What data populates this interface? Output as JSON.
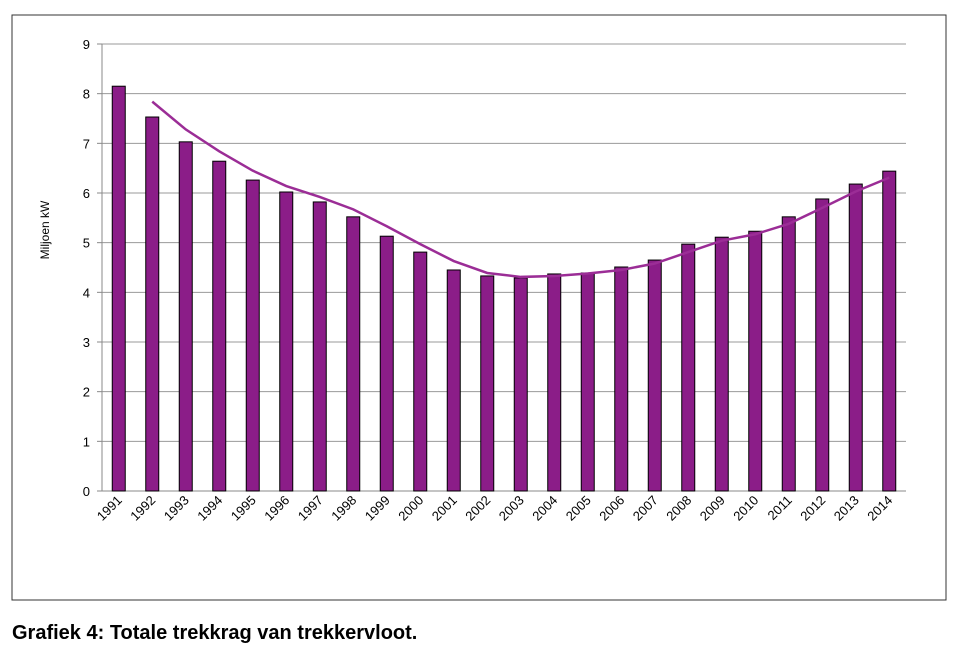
{
  "chart_data": {
    "type": "bar",
    "y_label": "Miljoen kW",
    "caption": "Grafiek 4: Totale trekkrag van trekkervloot.",
    "categories": [
      "1991",
      "1992",
      "1993",
      "1994",
      "1995",
      "1996",
      "1997",
      "1998",
      "1999",
      "2000",
      "2001",
      "2002",
      "2003",
      "2004",
      "2005",
      "2006",
      "2007",
      "2008",
      "2009",
      "2010",
      "2011",
      "2012",
      "2013",
      "2014"
    ],
    "series": [
      {
        "type": "bar",
        "color": "#8b1d88",
        "values": [
          8.15,
          7.53,
          7.03,
          6.64,
          6.26,
          6.02,
          5.82,
          5.52,
          5.13,
          4.81,
          4.45,
          4.33,
          4.29,
          4.37,
          4.39,
          4.51,
          4.65,
          4.97,
          5.11,
          5.23,
          5.52,
          5.88,
          6.18,
          6.44
        ]
      },
      {
        "type": "line",
        "color": "#9b2d96",
        "values": [
          null,
          7.84,
          7.28,
          6.84,
          6.45,
          6.14,
          5.92,
          5.67,
          5.33,
          4.97,
          4.63,
          4.39,
          4.31,
          4.33,
          4.38,
          4.45,
          4.58,
          4.81,
          5.04,
          5.17,
          5.38,
          5.7,
          6.03,
          6.31
        ]
      }
    ],
    "ylim": [
      0,
      9
    ],
    "yticks": [
      0,
      1,
      2,
      3,
      4,
      5,
      6,
      7,
      8,
      9
    ],
    "grid": true
  }
}
